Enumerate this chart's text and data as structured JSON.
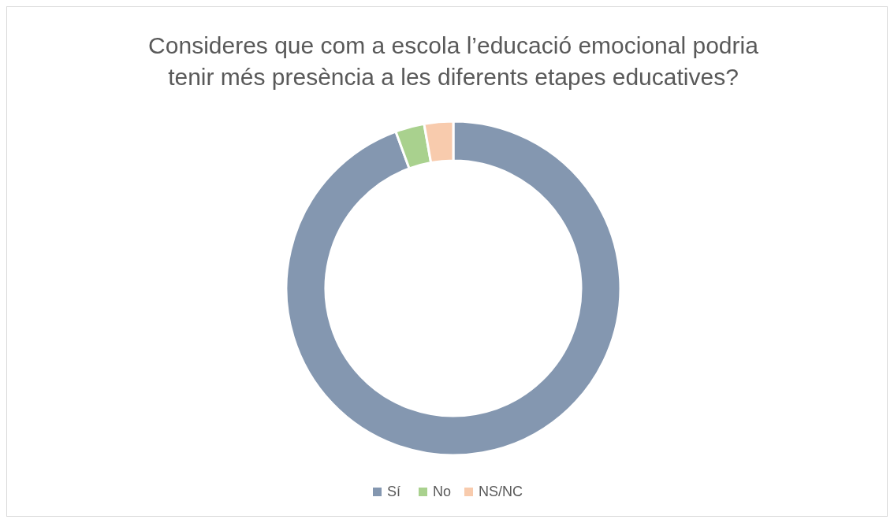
{
  "chart_data": {
    "type": "donut",
    "title": "Consideres que com a escola l’educació emocional podria tenir més presència a les diferents etapes educatives?",
    "categories": [
      "Sí",
      "No",
      "NS/NC"
    ],
    "values": [
      94.4,
      2.8,
      2.8
    ],
    "colors": [
      "#8497b0",
      "#a9d18e",
      "#f8cbad"
    ],
    "legend": "bottom"
  }
}
